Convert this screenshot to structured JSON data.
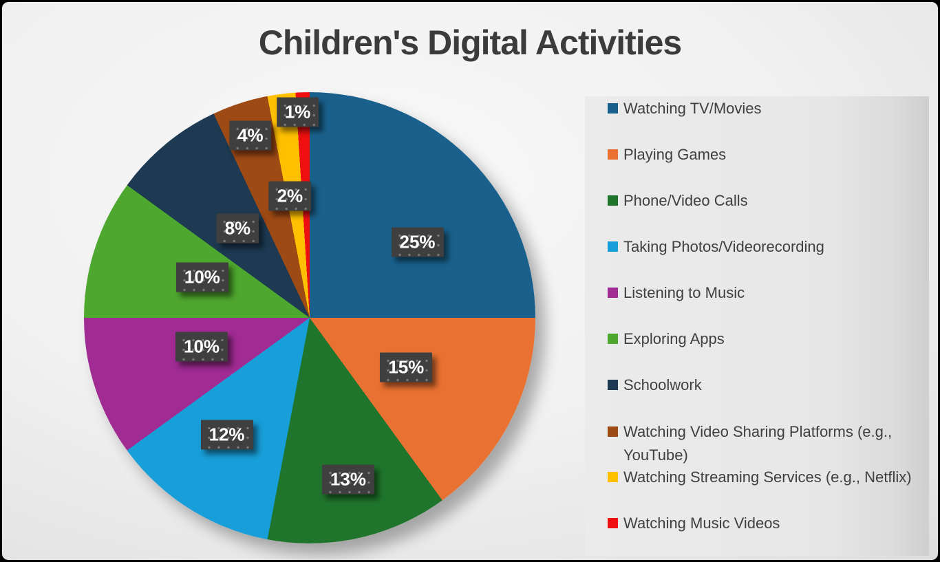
{
  "title": "Children's Digital Activities",
  "chart_data": {
    "type": "pie",
    "title": "Children's Digital Activities",
    "legend_position": "right",
    "start_angle_deg": 0,
    "direction": "clockwise",
    "categories": [
      "Watching TV/Movies",
      "Playing Games",
      "Phone/Video Calls",
      "Taking Photos/Videorecording",
      "Listening to Music",
      "Exploring Apps",
      "Schoolwork",
      "Watching Video Sharing Platforms (e.g., YouTube)",
      "Watching Streaming Services (e.g., Netflix)",
      "Watching Music Videos"
    ],
    "values": [
      25,
      15,
      13,
      12,
      10,
      10,
      8,
      4,
      2,
      1
    ],
    "data_labels": [
      "25%",
      "15%",
      "13%",
      "12%",
      "10%",
      "10%",
      "8%",
      "4%",
      "2%",
      "1%"
    ],
    "colors": [
      "#19618C",
      "#E97132",
      "#1F752B",
      "#189ED8",
      "#A02B93",
      "#4EA72E",
      "#1D3A52",
      "#9E4A15",
      "#FFC002",
      "#EE1010"
    ],
    "label_box_color": "#3F3F3F",
    "label_text_color": "#FFFFFF",
    "title_color": "#3B3B3B",
    "legend_text_color": "#3F3F3F"
  }
}
